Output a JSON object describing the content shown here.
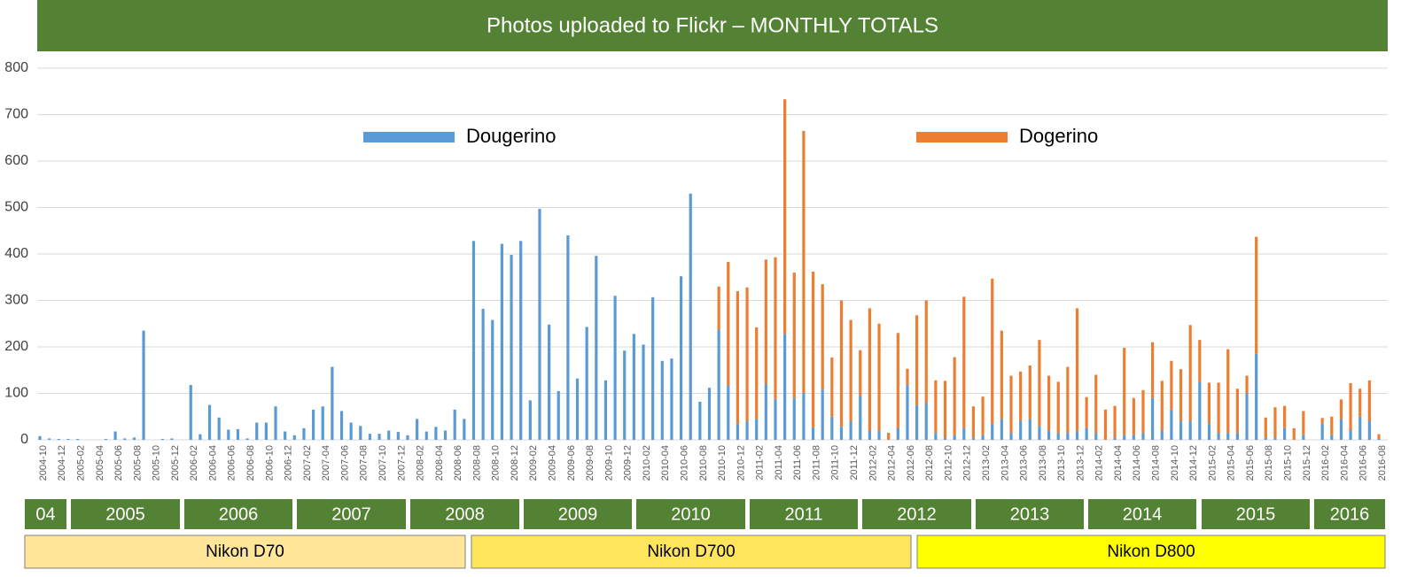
{
  "chart_data": {
    "type": "stacked-bar",
    "title": "Photos uploaded to Flickr – MONTHLY TOTALS",
    "categories": [
      "2004-10",
      null,
      "2004-12",
      null,
      "2005-02",
      null,
      "2005-04",
      null,
      "2005-06",
      null,
      "2005-08",
      null,
      "2005-10",
      null,
      "2005-12",
      null,
      "2006-02",
      null,
      "2006-04",
      null,
      "2006-06",
      null,
      "2006-08",
      null,
      "2006-10",
      null,
      "2006-12",
      null,
      "2007-02",
      null,
      "2007-04",
      null,
      "2007-06",
      null,
      "2007-08",
      null,
      "2007-10",
      null,
      "2007-12",
      null,
      "2008-02",
      null,
      "2008-04",
      null,
      "2008-06",
      null,
      "2008-08",
      null,
      "2008-10",
      null,
      "2008-12",
      null,
      "2009-02",
      null,
      "2009-04",
      null,
      "2009-06",
      null,
      "2009-08",
      null,
      "2009-10",
      null,
      "2009-12",
      null,
      "2010-02",
      null,
      "2010-04",
      null,
      "2010-06",
      null,
      "2010-08",
      null,
      "2010-10",
      null,
      "2010-12",
      null,
      "2011-02",
      null,
      "2011-04",
      null,
      "2011-06",
      null,
      "2011-08",
      null,
      "2011-10",
      null,
      "2011-12",
      null,
      "2012-02",
      null,
      "2012-04",
      null,
      "2012-06",
      null,
      "2012-08",
      null,
      "2012-10",
      null,
      "2012-12",
      null,
      "2013-02",
      null,
      "2013-04",
      null,
      "2013-06",
      null,
      "2013-08",
      null,
      "2013-10",
      null,
      "2013-12",
      null,
      "2014-02",
      null,
      "2014-04",
      null,
      "2014-06",
      null,
      "2014-08",
      null,
      "2014-10",
      null,
      "2014-12",
      null,
      "2015-02",
      null,
      "2015-04",
      null,
      "2015-06",
      null,
      "2015-08",
      null,
      "2015-10",
      null,
      "2015-12",
      null,
      "2016-02",
      null,
      "2016-04",
      null,
      "2016-06",
      null,
      "2016-08"
    ],
    "series": [
      {
        "name": "Dougerino",
        "color": "#5b9bd5",
        "values": [
          8,
          3,
          2,
          2,
          2,
          0,
          0,
          2,
          18,
          3,
          5,
          235,
          0,
          2,
          3,
          0,
          118,
          12,
          75,
          48,
          22,
          23,
          3,
          37,
          37,
          72,
          18,
          10,
          25,
          65,
          72,
          157,
          62,
          37,
          30,
          13,
          13,
          20,
          17,
          10,
          45,
          18,
          28,
          20,
          65,
          45,
          428,
          282,
          258,
          422,
          398,
          428,
          85,
          497,
          248,
          105,
          440,
          132,
          243,
          396,
          128,
          310,
          192,
          228,
          205,
          307,
          170,
          175,
          352,
          530,
          82,
          112,
          237,
          117,
          35,
          40,
          45,
          120,
          88,
          228,
          90,
          100,
          27,
          108,
          50,
          28,
          40,
          95,
          20,
          20,
          0,
          25,
          118,
          75,
          80,
          15,
          5,
          10,
          25,
          5,
          10,
          35,
          45,
          15,
          40,
          45,
          30,
          20,
          15,
          15,
          18,
          25,
          15,
          0,
          5,
          10,
          10,
          15,
          90,
          20,
          65,
          40,
          40,
          125,
          35,
          15,
          15,
          15,
          100,
          185,
          5,
          5,
          25,
          0,
          10,
          0,
          35,
          10,
          45,
          20,
          50,
          40,
          2
        ]
      },
      {
        "name": "Dogerino",
        "color": "#ed7d31",
        "values": [
          0,
          0,
          0,
          0,
          0,
          0,
          0,
          0,
          0,
          0,
          0,
          0,
          0,
          0,
          0,
          0,
          0,
          0,
          0,
          0,
          0,
          0,
          0,
          0,
          0,
          0,
          0,
          0,
          0,
          0,
          0,
          0,
          0,
          0,
          0,
          0,
          0,
          0,
          0,
          0,
          0,
          0,
          0,
          0,
          0,
          0,
          0,
          0,
          0,
          0,
          0,
          0,
          0,
          0,
          0,
          0,
          0,
          0,
          0,
          0,
          0,
          0,
          0,
          0,
          0,
          0,
          0,
          0,
          0,
          0,
          0,
          0,
          93,
          266,
          285,
          288,
          197,
          268,
          305,
          505,
          270,
          565,
          335,
          227,
          127,
          272,
          218,
          98,
          263,
          230,
          15,
          205,
          35,
          193,
          220,
          113,
          122,
          168,
          283,
          67,
          83,
          312,
          190,
          123,
          107,
          115,
          185,
          118,
          110,
          142,
          265,
          67,
          125,
          65,
          68,
          188,
          80,
          92,
          120,
          107,
          105,
          112,
          207,
          90,
          88,
          108,
          180,
          95,
          38,
          252,
          43,
          65,
          48,
          25,
          52,
          0,
          12,
          40,
          42,
          102,
          60,
          88,
          10
        ]
      }
    ],
    "ylim": [
      0,
      800
    ],
    "yticks": [
      0,
      100,
      200,
      300,
      400,
      500,
      600,
      700,
      800
    ],
    "grid": true,
    "year_labels": [
      "04",
      "2005",
      "2006",
      "2007",
      "2008",
      "2009",
      "2010",
      "2011",
      "2012",
      "2013",
      "2014",
      "2015",
      "2016"
    ],
    "year_color": "#548235",
    "periods": [
      {
        "label": "Nikon D70",
        "color": "#ffe699"
      },
      {
        "label": "Nikon D700",
        "color": "#ffe55c"
      },
      {
        "label": "Nikon D800",
        "color": "#ffff00"
      }
    ]
  }
}
